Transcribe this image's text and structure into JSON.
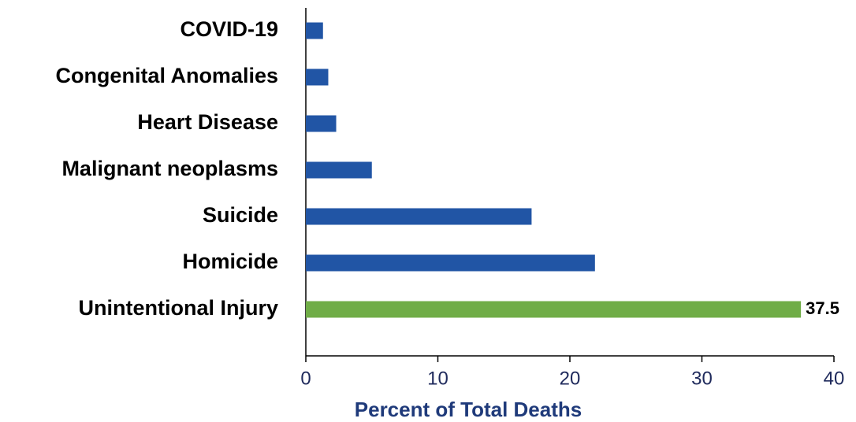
{
  "chart_data": {
    "type": "barh",
    "x_label": "Percent of Total Deaths",
    "categories": [
      "COVID-19",
      "Congenital Anomalies",
      "Heart Disease",
      "Malignant neoplasms",
      "Suicide",
      "Homicide",
      "Unintentional Injury"
    ],
    "values": [
      1.3,
      1.7,
      2.3,
      5.0,
      17.1,
      21.9,
      37.5
    ],
    "value_labels": [
      null,
      null,
      null,
      null,
      null,
      null,
      "37.5"
    ],
    "colors": [
      "#2155a5",
      "#2155a5",
      "#2155a5",
      "#2155a5",
      "#2155a5",
      "#2155a5",
      "#70ad47"
    ],
    "xlim": [
      0,
      40
    ],
    "xticks": [
      0,
      10,
      20,
      30,
      40
    ],
    "grid": false
  }
}
